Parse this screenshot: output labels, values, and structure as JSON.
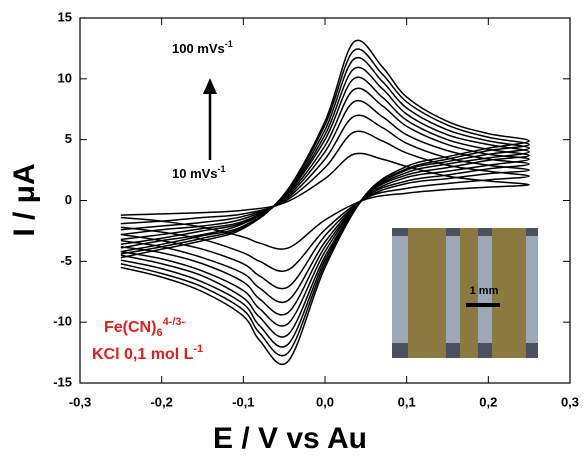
{
  "chart_data": {
    "type": "line",
    "x_label": "E / V vs Au",
    "y_label": "I / μA",
    "annotations": {
      "top_rate": {
        "text": "100 mVs",
        "sup": "-1"
      },
      "bottom_rate": {
        "text": "10 mVs",
        "sup": "-1"
      },
      "species": {
        "text": "Fe(CN)",
        "sub": "6",
        "sup": "4-/3-"
      },
      "electrolyte": {
        "text": "KCl 0,1 mol L",
        "sup": "-1"
      },
      "scale_bar": "1 mm"
    },
    "color": "#000000",
    "x": [
      -0.25,
      -0.2,
      -0.15,
      -0.1,
      -0.05,
      0,
      0.035,
      0.07,
      0.1,
      0.15,
      0.2,
      0.25,
      0.2,
      0.15,
      0.1,
      0.05,
      0,
      -0.045,
      -0.08,
      -0.1,
      -0.15,
      -0.2,
      -0.25
    ],
    "series": [
      {
        "values": [
          -1.2,
          -1.1,
          -1.0,
          -0.8,
          -0.2,
          1.8,
          3.8,
          3.4,
          2.8,
          2.0,
          1.6,
          1.3,
          1.1,
          0.9,
          0.6,
          0.1,
          -1.6,
          -3.9,
          -3.5,
          -3.0,
          -2.2,
          -1.7,
          -1.4
        ]
      },
      {
        "values": [
          -1.9,
          -1.7,
          -1.4,
          -1.1,
          -0.1,
          2.7,
          5.6,
          4.9,
          3.9,
          2.9,
          2.4,
          2.0,
          1.7,
          1.4,
          1.0,
          0.2,
          -2.4,
          -5.7,
          -5.0,
          -4.3,
          -3.2,
          -2.6,
          -2.2
        ]
      },
      {
        "values": [
          -2.4,
          -2.1,
          -1.8,
          -1.3,
          0.0,
          3.4,
          6.9,
          6.0,
          4.7,
          3.5,
          2.9,
          2.5,
          2.2,
          1.8,
          1.4,
          0.2,
          -2.9,
          -7.1,
          -6.2,
          -5.2,
          -4.0,
          -3.3,
          -2.8
        ]
      },
      {
        "values": [
          -2.8,
          -2.4,
          -2.1,
          -1.5,
          0.1,
          4.0,
          8.1,
          6.9,
          5.4,
          4.1,
          3.4,
          3.0,
          2.6,
          2.1,
          1.6,
          0.3,
          -3.4,
          -8.2,
          -7.2,
          -6.0,
          -4.7,
          -3.8,
          -3.3
        ]
      },
      {
        "values": [
          -3.2,
          -2.8,
          -2.3,
          -1.7,
          0.2,
          4.5,
          9.1,
          7.8,
          6.1,
          4.6,
          3.8,
          3.4,
          2.9,
          2.4,
          1.9,
          0.3,
          -3.8,
          -9.2,
          -8.1,
          -6.7,
          -5.2,
          -4.3,
          -3.8
        ]
      },
      {
        "values": [
          -3.6,
          -3.1,
          -2.5,
          -1.8,
          0.3,
          5.0,
          10.0,
          8.5,
          6.6,
          5.0,
          4.2,
          3.7,
          3.3,
          2.7,
          2.1,
          0.4,
          -4.2,
          -10.1,
          -8.9,
          -7.4,
          -5.8,
          -4.8,
          -4.2
        ]
      },
      {
        "values": [
          -3.9,
          -3.3,
          -2.8,
          -1.9,
          0.3,
          5.4,
          10.8,
          9.2,
          7.1,
          5.4,
          4.6,
          4.0,
          3.5,
          3.0,
          2.3,
          0.4,
          -4.6,
          -11.0,
          -9.6,
          -8.0,
          -6.2,
          -5.2,
          -4.5
        ]
      },
      {
        "values": [
          -4.2,
          -3.6,
          -2.9,
          -2.1,
          0.4,
          5.8,
          11.6,
          9.8,
          7.6,
          5.8,
          4.9,
          4.3,
          3.8,
          3.2,
          2.5,
          0.4,
          -4.9,
          -11.8,
          -10.3,
          -8.5,
          -6.7,
          -5.6,
          -4.9
        ]
      },
      {
        "values": [
          -4.4,
          -3.8,
          -3.1,
          -2.2,
          0.5,
          6.2,
          12.3,
          10.4,
          8.1,
          6.2,
          5.2,
          4.6,
          4.1,
          3.4,
          2.6,
          0.5,
          -5.2,
          -12.5,
          -10.9,
          -9.0,
          -7.1,
          -6.0,
          -5.2
        ]
      },
      {
        "values": [
          -4.7,
          -4.0,
          -3.3,
          -2.3,
          0.5,
          6.5,
          13,
          11,
          8.5,
          6.5,
          5.5,
          4.9,
          4.3,
          3.6,
          2.8,
          0.5,
          -5.5,
          -13.2,
          -11.5,
          -9.5,
          -7.5,
          -6.3,
          -5.5
        ]
      }
    ],
    "xlim": [
      -0.3,
      0.3
    ],
    "ylim": [
      -15,
      15
    ],
    "xticks": [
      {
        "value": -0.3,
        "label": "-0,3"
      },
      {
        "value": -0.2,
        "label": "-0,2"
      },
      {
        "value": -0.1,
        "label": "-0,1"
      },
      {
        "value": 0,
        "label": "0,0"
      },
      {
        "value": 0.1,
        "label": "0,1"
      },
      {
        "value": 0.2,
        "label": "0,2"
      },
      {
        "value": 0.3,
        "label": "0,3"
      }
    ],
    "yticks": [
      -15,
      -10,
      -5,
      0,
      5,
      10,
      15
    ]
  }
}
